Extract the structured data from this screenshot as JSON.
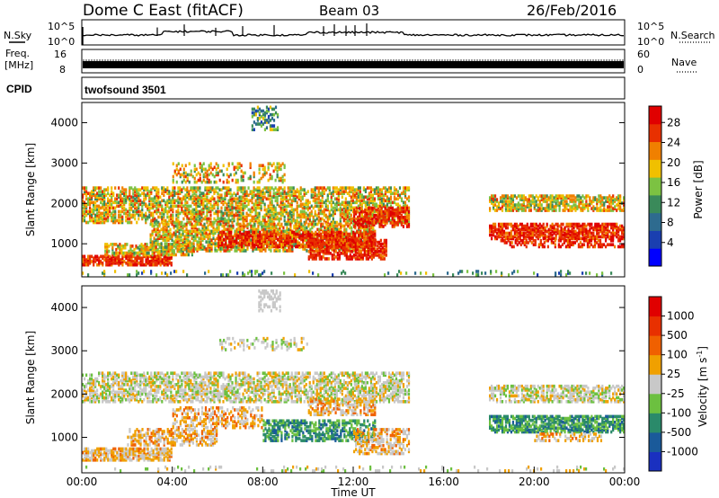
{
  "header": {
    "station": "Dome C East (fitACF)",
    "beam": "Beam 03",
    "date": "26/Feb/2016"
  },
  "nsky_panel": {
    "left_label": "N.Sky",
    "right_label": "N.Search",
    "ticks_left": [
      "10^5",
      "10^0"
    ],
    "ticks_right": [
      "10^5",
      "10^0"
    ]
  },
  "freq_panel": {
    "left_label_1": "Freq.",
    "left_label_2": "[MHz]",
    "right_label": "Nave",
    "ticks_left": [
      "16",
      "8"
    ],
    "ticks_right": [
      "60",
      "0"
    ]
  },
  "cpid_panel": {
    "label": "CPID",
    "program": "twofsound 3501"
  },
  "chart_data": [
    {
      "type": "heatmap",
      "name": "power",
      "ylabel": "Slant Range [km]",
      "yticks": [
        1000,
        2000,
        3000,
        4000
      ],
      "ylim": [
        180,
        4500
      ],
      "xlim": [
        0,
        24
      ],
      "colorbar": {
        "label": "Power [dB]",
        "ticks": [
          "4",
          "8",
          "12",
          "16",
          "20",
          "24",
          "28"
        ],
        "colors": [
          "#0000ff",
          "#1a3fb0",
          "#2e6b8f",
          "#3a8a5a",
          "#7cc242",
          "#f0c000",
          "#f08000",
          "#e83000",
          "#e00000"
        ]
      }
    },
    {
      "type": "heatmap",
      "name": "velocity",
      "ylabel": "Slant Range [km]",
      "yticks": [
        1000,
        2000,
        3000,
        4000
      ],
      "ylim": [
        180,
        4500
      ],
      "xlim": [
        0,
        24
      ],
      "xlabel": "Time UT",
      "xticks": [
        "00:00",
        "04:00",
        "08:00",
        "12:00",
        "16:00",
        "20:00",
        "00:00"
      ],
      "colorbar": {
        "label": "Velocity [m s^-1]",
        "ticks": [
          "1000",
          "500",
          "100",
          "25",
          "-25",
          "-100",
          "-500",
          "-1000"
        ],
        "colors": [
          "#1a30c0",
          "#1a5a9a",
          "#2a8a6a",
          "#6cc040",
          "#c8c8c8",
          "#f0a000",
          "#f06000",
          "#e83000",
          "#e00000"
        ]
      }
    }
  ]
}
